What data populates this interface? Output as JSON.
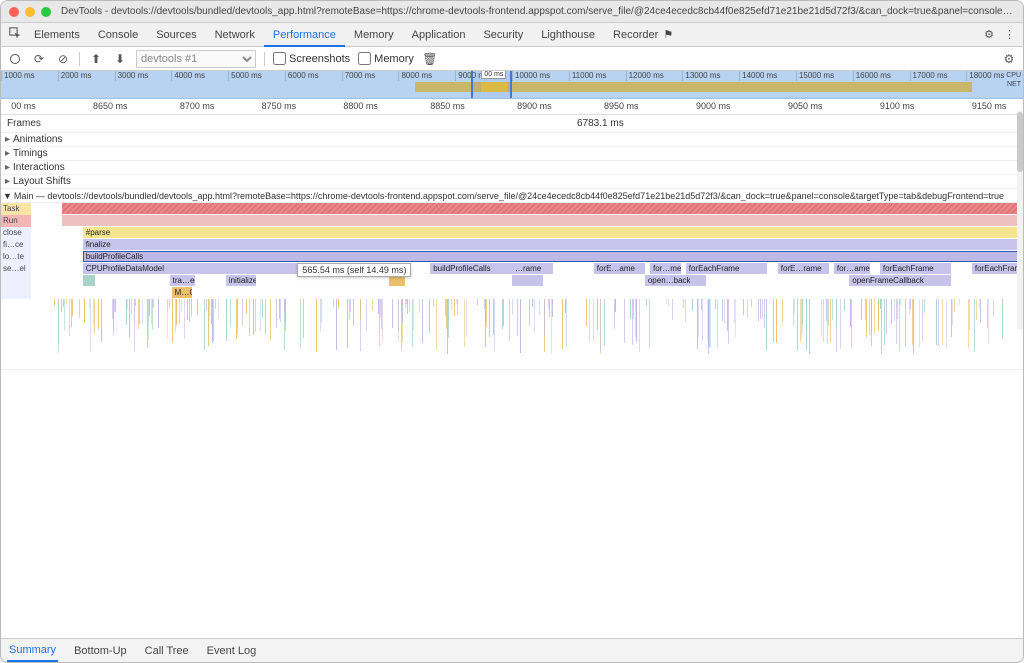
{
  "window": {
    "title": "DevTools - devtools://devtools/bundled/devtools_app.html?remoteBase=https://chrome-devtools-frontend.appspot.com/serve_file/@24ce4ecedc8cb44f0e825efd71e21be21d5d72f3/&can_dock=true&panel=console&targetType=tab&debugFrontend=true"
  },
  "tabs": {
    "items": [
      "Elements",
      "Console",
      "Sources",
      "Network",
      "Performance",
      "Memory",
      "Application",
      "Security",
      "Lighthouse",
      "Recorder"
    ],
    "active": "Performance",
    "recorder_badge": "⚑"
  },
  "toolbar": {
    "profile_name": "devtools #1",
    "screenshots_label": "Screenshots",
    "memory_label": "Memory"
  },
  "overview": {
    "ticks": [
      "1000 ms",
      "2000 ms",
      "3000 ms",
      "4000 ms",
      "5000 ms",
      "6000 ms",
      "7000 ms",
      "8000 ms",
      "9000 ms",
      "10000 ms",
      "11000 ms",
      "12000 ms",
      "13000 ms",
      "14000 ms",
      "15000 ms",
      "16000 ms",
      "17000 ms",
      "18000 ms"
    ],
    "right_labels": [
      "CPU",
      "NET"
    ],
    "activity_start_pct": 40.5,
    "activity_end_pct": 95,
    "activity_color": "#c9b869",
    "gap_start_pct": 47,
    "gap_end_pct": 49.5,
    "gap_color": "#e8c23a",
    "sel_start_pct": 46,
    "sel_end_pct": 50,
    "sel_caret_label": "00 ms",
    "background": "#b7d3f1"
  },
  "ruler": {
    "ticks": [
      {
        "label": "00 ms",
        "pct": 1
      },
      {
        "label": "8650 ms",
        "pct": 9
      },
      {
        "label": "8700 ms",
        "pct": 17.5
      },
      {
        "label": "8750 ms",
        "pct": 25.5
      },
      {
        "label": "8800 ms",
        "pct": 33.5
      },
      {
        "label": "8850 ms",
        "pct": 42
      },
      {
        "label": "8900 ms",
        "pct": 50.5
      },
      {
        "label": "8950 ms",
        "pct": 59
      },
      {
        "label": "9000 ms",
        "pct": 68
      },
      {
        "label": "9050 ms",
        "pct": 77
      },
      {
        "label": "9100 ms",
        "pct": 86
      },
      {
        "label": "9150 ms",
        "pct": 95
      }
    ]
  },
  "frames": {
    "label": "Frames",
    "value": "6783.1 ms"
  },
  "tracks": [
    "Animations",
    "Timings",
    "Interactions",
    "Layout Shifts"
  ],
  "main_header": "Main — devtools://devtools/bundled/devtools_app.html?remoteBase=https://chrome-devtools-frontend.appspot.com/serve_file/@24ce4ecedc8cb44f0e825efd71e21be21d5d72f3/&can_dock=true&panel=console&targetType=tab&debugFrontend=true",
  "flame": {
    "colors": {
      "task": "#f2e09a",
      "microtask": "#eec0c0",
      "stripe": "repeating-linear-gradient(135deg,#e88,#e88 2px,#d77 2px,#d77 4px)",
      "yellow": "#f6e58f",
      "purple": "#c8c3ea",
      "purple2": "#beb8e4",
      "cyan": "#a7d3c8",
      "orange": "#e9c06b",
      "selected_outline": "#2a5db0",
      "gut_bg": "#eef0ff"
    },
    "rows": [
      {
        "gutter": "Task",
        "gutter_class": "task",
        "bars": [
          {
            "l": 3,
            "w": 97,
            "c": "stripe",
            "label": ""
          }
        ]
      },
      {
        "gutter": "Run Microtasks",
        "gutter_class": "micro",
        "bars": [
          {
            "l": 3,
            "w": 97,
            "c": "microtask",
            "label": ""
          }
        ]
      },
      {
        "gutter": "close",
        "bars": [
          {
            "l": 5,
            "w": 95,
            "c": "yellow",
            "label": "#parse"
          }
        ]
      },
      {
        "gutter": "fi…ce",
        "bars": [
          {
            "l": 5,
            "w": 95,
            "c": "purple",
            "label": "finalize"
          }
        ]
      },
      {
        "gutter": "lo…te",
        "bars": [
          {
            "l": 5,
            "w": 95,
            "c": "purple2",
            "label": "buildProfileCalls",
            "sel": true
          }
        ]
      },
      {
        "gutter": "se…el",
        "bars": [
          {
            "l": 5,
            "w": 21,
            "c": "purple",
            "label": "CPUProfileDataModel"
          },
          {
            "l": 39,
            "w": 8,
            "c": "purple",
            "label": "buildProfileCalls"
          },
          {
            "l": 47,
            "w": 4,
            "c": "purple",
            "label": "…rame"
          },
          {
            "l": 55,
            "w": 5,
            "c": "purple",
            "label": "forE…ame"
          },
          {
            "l": 60.5,
            "w": 3,
            "c": "purple",
            "label": "for…me"
          },
          {
            "l": 64,
            "w": 8,
            "c": "purple",
            "label": "forEachFrame"
          },
          {
            "l": 73,
            "w": 5,
            "c": "purple",
            "label": "forE…rame"
          },
          {
            "l": 78.5,
            "w": 3.5,
            "c": "purple",
            "label": "for…ame"
          },
          {
            "l": 83,
            "w": 7,
            "c": "purple",
            "label": "forEachFrame"
          },
          {
            "l": 92,
            "w": 6,
            "c": "purple",
            "label": "forEachFrame"
          }
        ]
      },
      {
        "gutter": "",
        "bars": [
          {
            "l": 5,
            "w": 1.2,
            "c": "cyan",
            "label": ""
          },
          {
            "l": 13.5,
            "w": 2.5,
            "c": "purple",
            "label": "tra…ee"
          },
          {
            "l": 19,
            "w": 3,
            "c": "purple",
            "label": "initialize"
          },
          {
            "l": 35,
            "w": 1.5,
            "c": "orange",
            "label": ""
          },
          {
            "l": 47,
            "w": 3,
            "c": "purple",
            "label": ""
          },
          {
            "l": 60,
            "w": 6,
            "c": "purple",
            "label": "open…back"
          },
          {
            "l": 80,
            "w": 10,
            "c": "purple",
            "label": "openFrameCallback"
          }
        ]
      },
      {
        "gutter": "",
        "bars": [
          {
            "l": 13.7,
            "w": 2,
            "c": "orange",
            "label": "M…C"
          }
        ]
      }
    ],
    "tooltip": {
      "left_pct": 26,
      "row": 5,
      "text": "565.54 ms (self 14.49 ms)"
    }
  },
  "bottom_tabs": {
    "items": [
      "Summary",
      "Bottom-Up",
      "Call Tree",
      "Event Log"
    ],
    "active": "Summary"
  }
}
